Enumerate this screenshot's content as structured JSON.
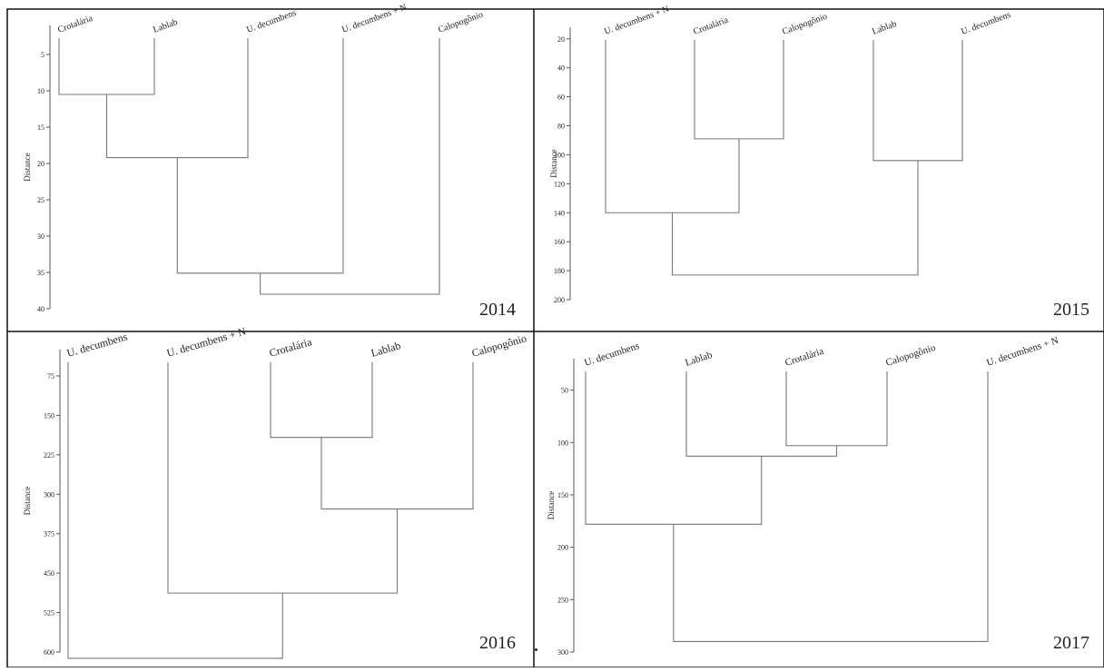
{
  "panels": [
    {
      "year": "2014",
      "ylabel": "Distance",
      "yticks": [
        5,
        10,
        15,
        20,
        25,
        30,
        35,
        40
      ],
      "ylim": [
        1,
        40
      ],
      "leaves": [
        "Crotalária",
        "Lablab",
        "U. decumbens",
        "U. decumbens + N",
        "Calopogônio"
      ],
      "merges": [
        {
          "a": "L0",
          "b": "L1",
          "height": 10.5
        },
        {
          "a": "M0",
          "b": "L2",
          "height": 19.2
        },
        {
          "a": "M1",
          "b": "L3",
          "height": 35.1
        },
        {
          "a": "M2",
          "b": "L4",
          "height": 38.0
        }
      ]
    },
    {
      "year": "2015",
      "ylabel": "Distance",
      "yticks": [
        20,
        40,
        60,
        80,
        100,
        120,
        140,
        160,
        180,
        200
      ],
      "ylim": [
        12,
        200
      ],
      "leaves": [
        "U. decumbens + N",
        "Crotalária",
        "Calopogônio",
        "Lablab",
        "U. decumbens"
      ],
      "merges": [
        {
          "a": "L1",
          "b": "L2",
          "height": 89
        },
        {
          "a": "L3",
          "b": "L4",
          "height": 104
        },
        {
          "a": "L0",
          "b": "M0",
          "height": 140
        },
        {
          "a": "M2",
          "b": "M1",
          "height": 183
        }
      ]
    },
    {
      "year": "2016",
      "ylabel": "Distance",
      "yticks": [
        75,
        150,
        225,
        300,
        375,
        450,
        525,
        600
      ],
      "ylim": [
        25,
        600
      ],
      "leaves": [
        "U. decumbens",
        "U. decumbens + N",
        "Crotalária",
        "Lablab",
        "Calopogônio"
      ],
      "merges": [
        {
          "a": "L2",
          "b": "L3",
          "height": 192
        },
        {
          "a": "M0",
          "b": "L4",
          "height": 328
        },
        {
          "a": "L1",
          "b": "M1",
          "height": 488
        },
        {
          "a": "L0",
          "b": "M2",
          "height": 612
        }
      ]
    },
    {
      "year": "2017",
      "ylabel": "Distance",
      "yticks": [
        50,
        100,
        150,
        200,
        250,
        300
      ],
      "ylim": [
        20,
        300
      ],
      "leaves": [
        "U. decumbens",
        "Lablab",
        "Crotalária",
        "Calopogônio",
        "U. decumbens + N"
      ],
      "merges": [
        {
          "a": "L2",
          "b": "L3",
          "height": 103
        },
        {
          "a": "L1",
          "b": "M0",
          "height": 113
        },
        {
          "a": "L0",
          "b": "M1",
          "height": 178
        },
        {
          "a": "M2",
          "b": "L4",
          "height": 290
        }
      ]
    }
  ]
}
